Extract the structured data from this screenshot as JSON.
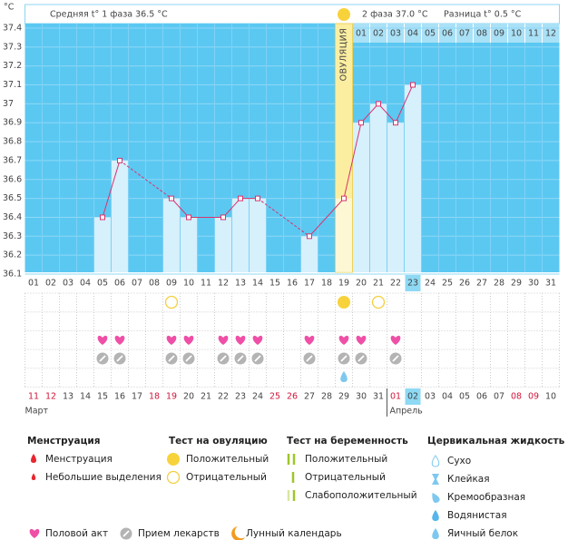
{
  "axis_unit": "°C",
  "header": {
    "phase1": "Средняя t° 1 фаза 36.5 °C",
    "phase2": "2 фаза 37.0 °C",
    "diff": "Разница t° 0.5 °C",
    "ovulation": "ОВУЛЯЦИЯ"
  },
  "chart_data": {
    "type": "line",
    "categories": [
      "01",
      "02",
      "03",
      "04",
      "05",
      "06",
      "07",
      "08",
      "09",
      "10",
      "11",
      "12",
      "13",
      "14",
      "15",
      "16",
      "17",
      "18",
      "19",
      "20",
      "21",
      "22",
      "23",
      "24",
      "25",
      "26",
      "27",
      "28",
      "29",
      "30",
      "31"
    ],
    "values": [
      null,
      null,
      null,
      null,
      36.4,
      36.7,
      null,
      null,
      36.5,
      36.4,
      null,
      36.4,
      36.5,
      36.5,
      null,
      null,
      36.3,
      null,
      36.5,
      36.9,
      37.0,
      36.9,
      37.1,
      null,
      null,
      null,
      null,
      null,
      null,
      null,
      null
    ],
    "ylim": [
      36.1,
      37.4
    ],
    "yticks": [
      37.4,
      37.3,
      37.2,
      37.1,
      37,
      36.9,
      36.8,
      36.7,
      36.6,
      36.5,
      36.4,
      36.3,
      36.2,
      36.1
    ],
    "color": "#d8336d",
    "bar_color": "#d6f0fc",
    "grid": true,
    "ovulation_day": "19",
    "today": "23",
    "phase2_days": [
      "01",
      "02",
      "03",
      "04",
      "05",
      "06",
      "07",
      "08",
      "09",
      "10",
      "11",
      "12"
    ]
  },
  "calendar": {
    "dates": [
      "11",
      "12",
      "13",
      "14",
      "15",
      "16",
      "17",
      "18",
      "19",
      "20",
      "21",
      "22",
      "23",
      "24",
      "25",
      "26",
      "27",
      "28",
      "29",
      "30",
      "31",
      "01",
      "02",
      "03",
      "04",
      "05",
      "06",
      "07",
      "08",
      "09",
      "10"
    ],
    "weekend": [
      true,
      true,
      false,
      false,
      false,
      false,
      false,
      true,
      true,
      false,
      false,
      false,
      false,
      false,
      true,
      true,
      false,
      false,
      false,
      false,
      false,
      true,
      false,
      false,
      false,
      false,
      false,
      false,
      true,
      true,
      false
    ],
    "highlight_index": 22,
    "months": [
      "Март",
      "Апрель"
    ],
    "month_start": 21
  },
  "events": {
    "ovulation_positive": [
      "19"
    ],
    "ovulation_negative": [
      "09",
      "21"
    ],
    "intercourse": [
      "05",
      "06",
      "09",
      "10",
      "12",
      "13",
      "14",
      "17",
      "19",
      "20",
      "22"
    ],
    "medication": [
      "05",
      "06",
      "09",
      "10",
      "12",
      "13",
      "14",
      "17",
      "19",
      "20",
      "22"
    ],
    "cervical_egg_white": [
      "19"
    ]
  },
  "legend": {
    "menstruation": {
      "title": "Менструация",
      "items": [
        "Менструация",
        "Небольшие выделения"
      ]
    },
    "ovulation_test": {
      "title": "Тест на овуляцию",
      "items": [
        "Положительный",
        "Отрицательный"
      ]
    },
    "pregnancy_test": {
      "title": "Тест на беременность",
      "items": [
        "Положительный",
        "Отрицательный",
        "Слабоположительный"
      ]
    },
    "cervical": {
      "title": "Цервикальная жидкость",
      "items": [
        "Сухо",
        "Клейкая",
        "Кремообразная",
        "Водянистая",
        "Яичный белок"
      ]
    },
    "other": [
      "Половой акт",
      "Прием лекарств",
      "Лунный календарь"
    ]
  }
}
